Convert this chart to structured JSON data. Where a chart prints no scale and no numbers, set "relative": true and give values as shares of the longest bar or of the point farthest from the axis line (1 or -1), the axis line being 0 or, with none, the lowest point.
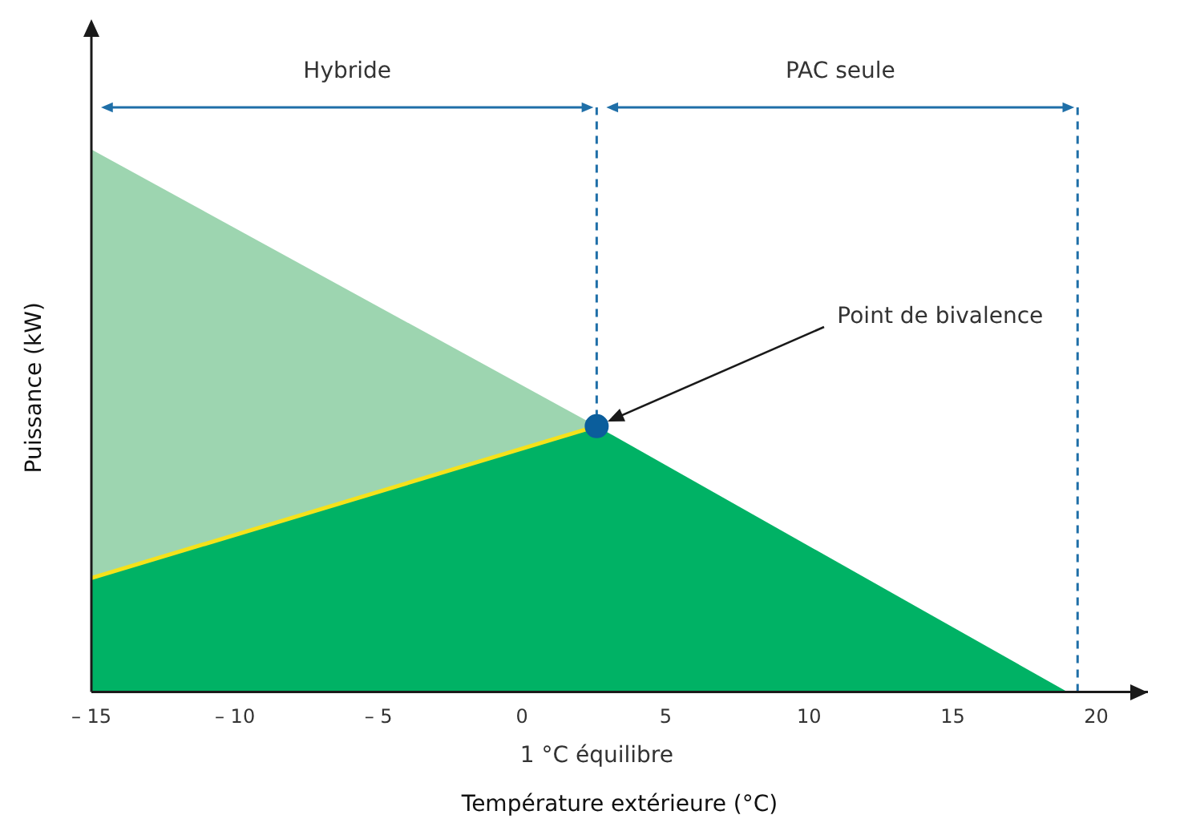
{
  "chart_data": {
    "type": "area",
    "relative": true,
    "xlabel": "Température extérieure (°C)",
    "ylabel": "Puissance (kW)",
    "xlim": [
      -15,
      21.8
    ],
    "xticks": [
      {
        "value": -15,
        "label": "– 15"
      },
      {
        "value": -10,
        "label": "– 10"
      },
      {
        "value": -5,
        "label": "– 5"
      },
      0,
      5,
      10,
      15,
      20
    ],
    "grid": false,
    "legend": false,
    "series": [
      {
        "type": "area",
        "color": "#9dd5b0",
        "x": [
          -15,
          2.6
        ],
        "values": [
          1,
          0.49
        ]
      },
      {
        "type": "area",
        "color": "#00b265",
        "x": [
          -15,
          2.6,
          19
        ],
        "values": [
          0.21,
          0.49,
          0
        ]
      },
      {
        "type": "line",
        "color": "#f5e21b",
        "x": [
          -15,
          2.6
        ],
        "values": [
          0.21,
          0.49
        ]
      },
      {
        "type": "scatter",
        "color": "#0b5e9c",
        "x": [
          2.6
        ],
        "values": [
          0.49
        ]
      }
    ],
    "ref_lines": [
      {
        "axis": "x",
        "value": 2.6,
        "label": "1 °C équilibre",
        "color": "#1f6fa8",
        "line_style": "dashed"
      },
      {
        "axis": "x",
        "value": 19.35,
        "color": "#1f6fa8",
        "line_style": "dashed"
      }
    ],
    "annotations": [
      "Hybride",
      "PAC seule",
      "Point de bivalence"
    ]
  }
}
